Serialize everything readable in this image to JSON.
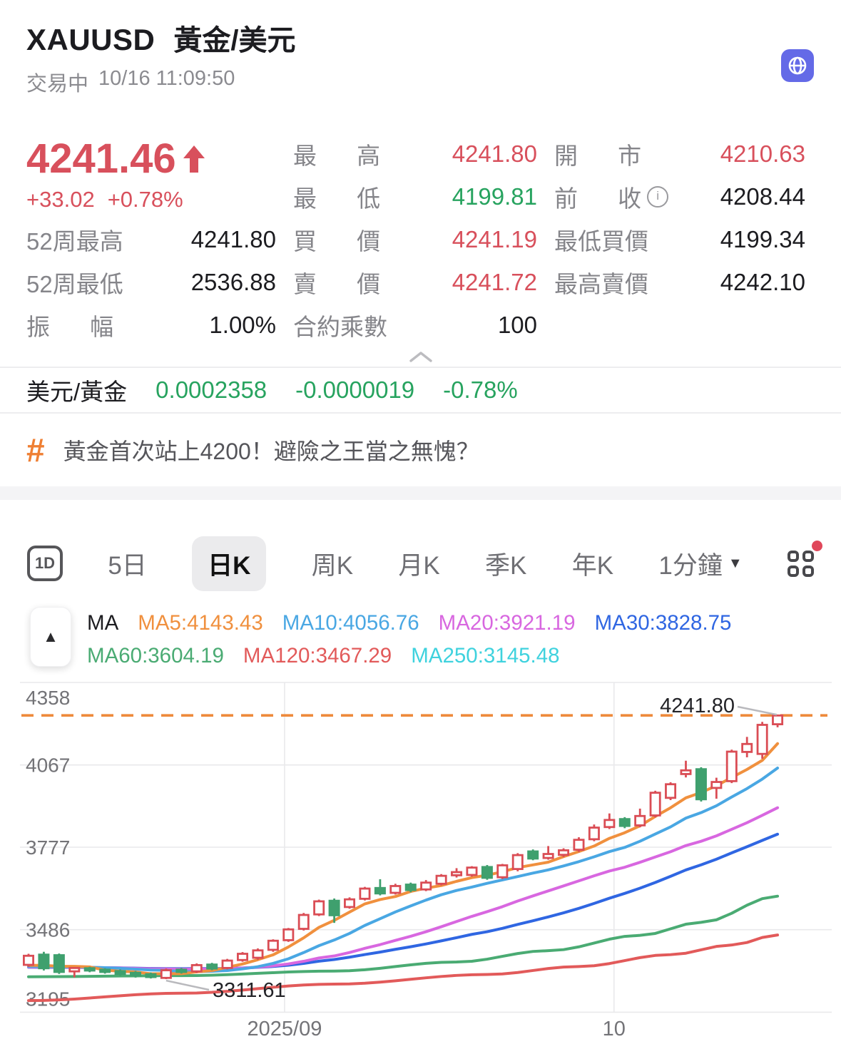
{
  "header": {
    "symbol": "XAUUSD",
    "name": "黃金/美元",
    "status": "交易中",
    "datetime": "10/16 11:09:50"
  },
  "quote": {
    "price": "4241.46",
    "direction": "up",
    "change": "+33.02",
    "change_pct": "+0.78%",
    "stats_left": [
      {
        "label": "52周最高",
        "value": "4241.80",
        "color": "black"
      },
      {
        "label": "52周最低",
        "value": "2536.88",
        "color": "black"
      },
      {
        "label": "振幅",
        "value": "1.00%",
        "color": "black"
      }
    ],
    "stats_mid": [
      {
        "label": "最高",
        "value": "4241.80",
        "color": "red"
      },
      {
        "label": "最低",
        "value": "4199.81",
        "color": "green"
      },
      {
        "label": "買價",
        "value": "4241.19",
        "color": "red"
      },
      {
        "label": "賣價",
        "value": "4241.72",
        "color": "red"
      },
      {
        "label": "合約乘數",
        "value": "100",
        "color": "black"
      }
    ],
    "stats_right": [
      {
        "label": "開市",
        "value": "4210.63",
        "color": "red"
      },
      {
        "label": "前收",
        "value": "4208.44",
        "color": "black",
        "info": true
      },
      {
        "label": "最低買價",
        "value": "4199.34",
        "color": "black"
      },
      {
        "label": "最高賣價",
        "value": "4242.10",
        "color": "black"
      }
    ]
  },
  "fx": {
    "label": "美元/黃金",
    "price": "0.0002358",
    "change": "-0.0000019",
    "change_pct": "-0.78%"
  },
  "news": {
    "headline": "黃金首次站上4200！避險之王當之無愧？"
  },
  "tabs": {
    "items": [
      {
        "label": "1D",
        "type": "icon-1d",
        "active": false
      },
      {
        "label": "5日",
        "active": false
      },
      {
        "label": "日K",
        "active": true
      },
      {
        "label": "周K",
        "active": false
      },
      {
        "label": "月K",
        "active": false
      },
      {
        "label": "季K",
        "active": false
      },
      {
        "label": "年K",
        "active": false
      },
      {
        "label": "1分鐘",
        "dropdown": true,
        "active": false
      },
      {
        "label": "indicator-grid",
        "type": "grid-icon",
        "badge": true
      }
    ]
  },
  "ma_legend_prefix": "MA",
  "chart_data": {
    "type": "candlestick",
    "symbol": "XAUUSD",
    "period": "日K",
    "up_color": "#da4d55",
    "down_color": "#3fa06e",
    "grid": true,
    "y_axis": {
      "ticks": [
        4358,
        4067,
        3777,
        3486,
        3195
      ],
      "min": 3195,
      "max": 4358
    },
    "x_axis": {
      "labels": [
        {
          "text": "2025/09",
          "at_index": 16.75
        },
        {
          "text": "10",
          "at_index": 38.3
        }
      ]
    },
    "annotations": [
      {
        "type": "high",
        "text": "4241.80",
        "value": 4241.8,
        "dashed_line": true,
        "line_color": "#ee8a3c"
      },
      {
        "type": "low",
        "text": "3311.61",
        "value": 3311.61,
        "candle_index": 9
      }
    ],
    "candles": [
      [
        3362,
        3401,
        3355,
        3394
      ],
      [
        3398,
        3408,
        3342,
        3350
      ],
      [
        3396,
        3402,
        3330,
        3337
      ],
      [
        3339,
        3354,
        3318,
        3351
      ],
      [
        3350,
        3355,
        3336,
        3342
      ],
      [
        3345,
        3350,
        3331,
        3337
      ],
      [
        3340,
        3346,
        3323,
        3330
      ],
      [
        3334,
        3340,
        3317,
        3325
      ],
      [
        3329,
        3335,
        3314,
        3319
      ],
      [
        3316,
        3349,
        3311.61,
        3343
      ],
      [
        3345,
        3351,
        3331,
        3337
      ],
      [
        3339,
        3367,
        3333,
        3361
      ],
      [
        3363,
        3369,
        3343,
        3349
      ],
      [
        3351,
        3383,
        3346,
        3377
      ],
      [
        3379,
        3407,
        3373,
        3401
      ],
      [
        3387,
        3420,
        3380,
        3413
      ],
      [
        3415,
        3452,
        3408,
        3447
      ],
      [
        3449,
        3492,
        3443,
        3487
      ],
      [
        3489,
        3545,
        3483,
        3538
      ],
      [
        3540,
        3592,
        3534,
        3586
      ],
      [
        3588,
        3596,
        3510,
        3537
      ],
      [
        3566,
        3600,
        3560,
        3593
      ],
      [
        3595,
        3637,
        3589,
        3631
      ],
      [
        3633,
        3664,
        3607,
        3614
      ],
      [
        3616,
        3648,
        3610,
        3640
      ],
      [
        3645,
        3652,
        3618,
        3626
      ],
      [
        3628,
        3661,
        3622,
        3652
      ],
      [
        3648,
        3682,
        3642,
        3676
      ],
      [
        3678,
        3703,
        3670,
        3689
      ],
      [
        3679,
        3710,
        3673,
        3705
      ],
      [
        3707,
        3714,
        3662,
        3669
      ],
      [
        3671,
        3718,
        3665,
        3713
      ],
      [
        3700,
        3756,
        3692,
        3749
      ],
      [
        3762,
        3769,
        3731,
        3737
      ],
      [
        3739,
        3781,
        3733,
        3753
      ],
      [
        3750,
        3773,
        3742,
        3766
      ],
      [
        3768,
        3812,
        3760,
        3803
      ],
      [
        3805,
        3857,
        3798,
        3846
      ],
      [
        3848,
        3896,
        3841,
        3873
      ],
      [
        3876,
        3883,
        3844,
        3852
      ],
      [
        3854,
        3913,
        3847,
        3887
      ],
      [
        3889,
        3976,
        3882,
        3969
      ],
      [
        3951,
        4006,
        3943,
        3999
      ],
      [
        4035,
        4082,
        4023,
        4048
      ],
      [
        4052,
        4059,
        3938,
        3946
      ],
      [
        3986,
        4022,
        3948,
        4007
      ],
      [
        4010,
        4121,
        4003,
        4114
      ],
      [
        4113,
        4166,
        4094,
        4141
      ],
      [
        4106,
        4219,
        4089,
        4208.44
      ],
      [
        4210.63,
        4241.8,
        4199.81,
        4241.46
      ]
    ],
    "ma_overlays": [
      {
        "name": "MA5",
        "color": "#f0903e",
        "window": 5,
        "legend": "MA5:4143.43"
      },
      {
        "name": "MA10",
        "color": "#49a7e3",
        "window": 10,
        "legend": "MA10:4056.76"
      },
      {
        "name": "MA20",
        "color": "#d867e0",
        "window": 20,
        "legend": "MA20:3921.19"
      },
      {
        "name": "MA30",
        "color": "#2f66e2",
        "window": 30,
        "legend": "MA30:3828.75"
      },
      {
        "name": "MA60",
        "color": "#4aab73",
        "anchors": [
          [
            0,
            3320
          ],
          [
            10,
            3324
          ],
          [
            20,
            3340
          ],
          [
            28,
            3372
          ],
          [
            34,
            3412
          ],
          [
            40,
            3466
          ],
          [
            44,
            3512
          ],
          [
            49,
            3604.19
          ]
        ],
        "legend": "MA60:3604.19"
      },
      {
        "name": "MA120",
        "color": "#e25a5a",
        "anchors": [
          [
            0,
            3236
          ],
          [
            10,
            3262
          ],
          [
            20,
            3294
          ],
          [
            30,
            3328
          ],
          [
            36,
            3356
          ],
          [
            42,
            3398
          ],
          [
            46,
            3432
          ],
          [
            49,
            3467.29
          ]
        ],
        "legend": "MA120:3467.29"
      },
      {
        "name": "MA250",
        "color": "#3fd2de",
        "anchors": [
          [
            0,
            2980
          ],
          [
            25,
            3062
          ],
          [
            49,
            3145.48
          ]
        ],
        "legend": "MA250:3145.48",
        "visible_in_plot": false
      }
    ]
  }
}
